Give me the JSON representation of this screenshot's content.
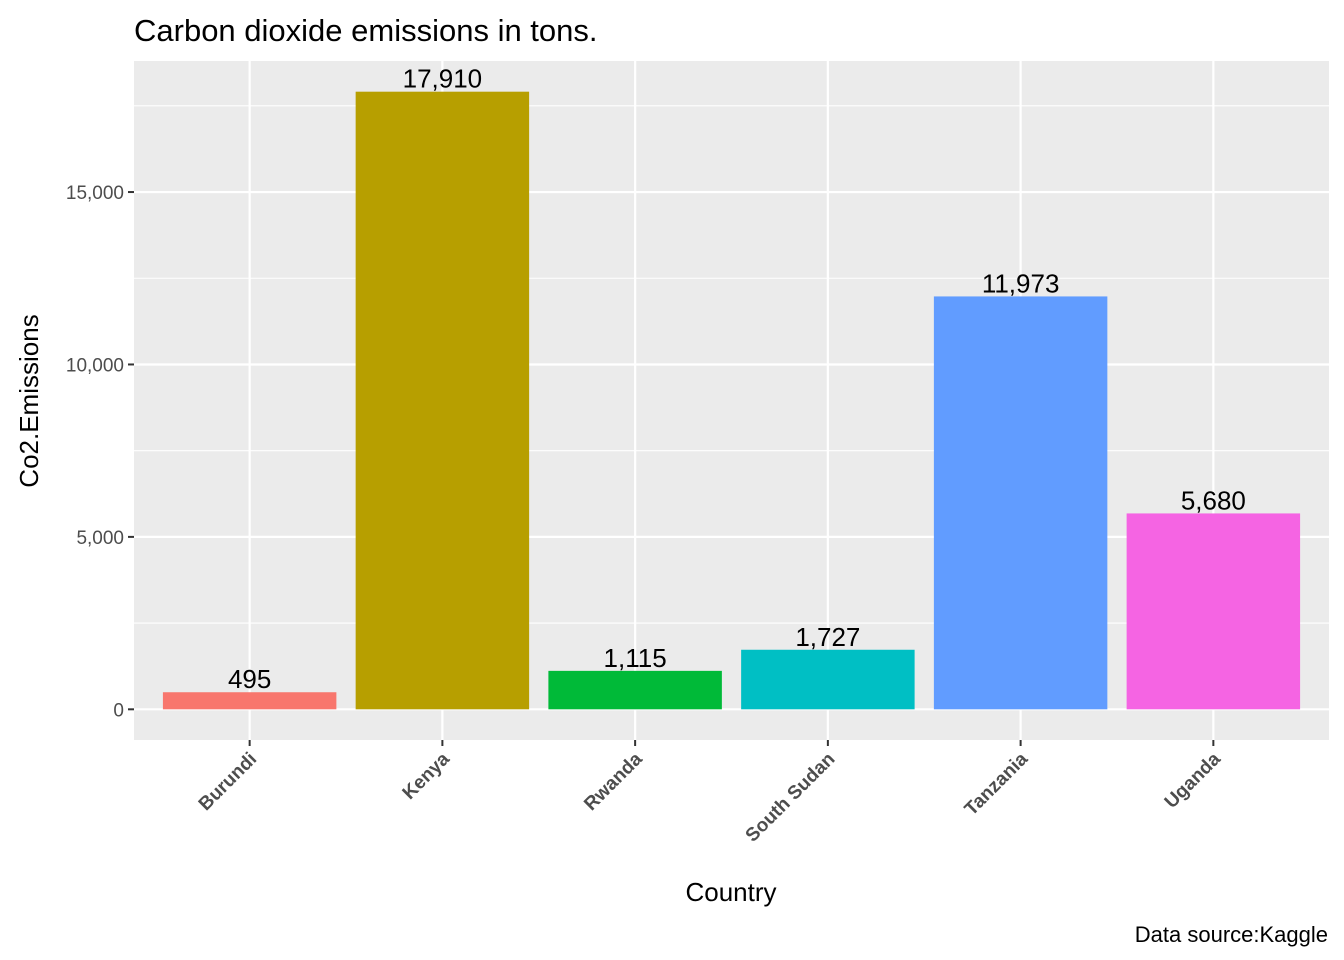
{
  "chart_data": {
    "type": "bar",
    "title": "Carbon dioxide emissions in tons.",
    "xlabel": "Country",
    "ylabel": "Co2.Emissions",
    "caption": "Data source:Kaggle",
    "categories": [
      "Burundi",
      "Kenya",
      "Rwanda",
      "South Sudan",
      "Tanzania",
      "Uganda"
    ],
    "values": [
      495,
      17910,
      1115,
      1727,
      11973,
      5680
    ],
    "value_labels": [
      "495",
      "17,910",
      "1,115",
      "1,727",
      "11,973",
      "5,680"
    ],
    "colors": [
      "#F8766D",
      "#B79F00",
      "#00BA38",
      "#00BFC4",
      "#619CFF",
      "#F564E3"
    ],
    "ylim": [
      -890,
      18800
    ],
    "y_ticks": [
      0,
      5000,
      10000,
      15000
    ],
    "y_tick_labels": [
      "0",
      "5,000",
      "10,000",
      "15,000"
    ],
    "grid": true,
    "legend": "none",
    "panel_background": "#EBEBEB",
    "gridline_color": "#FFFFFF"
  }
}
